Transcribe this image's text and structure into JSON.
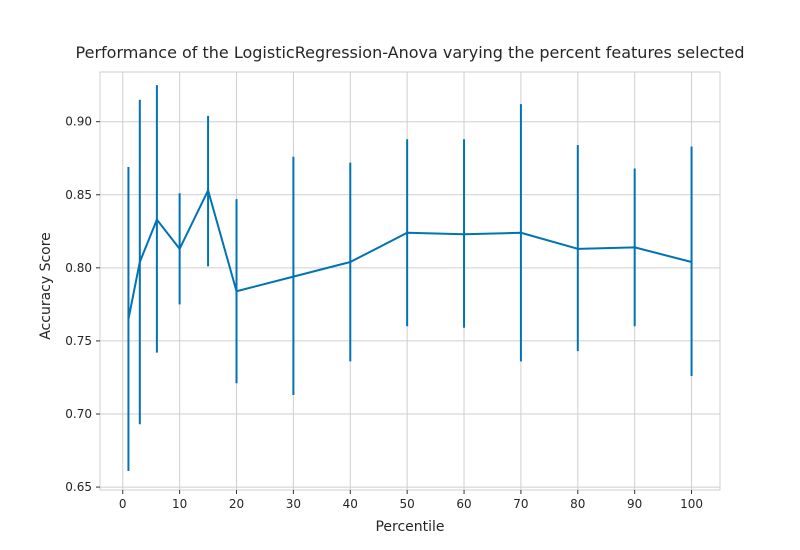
{
  "chart_data": {
    "type": "line",
    "title": "Performance of the LogisticRegression-Anova varying the percent features selected",
    "xlabel": "Percentile",
    "ylabel": "Accuracy Score",
    "xlim": [
      -4,
      105
    ],
    "ylim": [
      0.648,
      0.934
    ],
    "x_ticks": [
      0,
      10,
      20,
      30,
      40,
      50,
      60,
      70,
      80,
      90,
      100
    ],
    "y_ticks": [
      0.65,
      0.7,
      0.75,
      0.8,
      0.85,
      0.9
    ],
    "y_tick_labels": [
      "0.65",
      "0.70",
      "0.75",
      "0.80",
      "0.85",
      "0.90"
    ],
    "grid": true,
    "series": [
      {
        "color": "#0173b2",
        "x": [
          1,
          3,
          6,
          10,
          15,
          20,
          30,
          40,
          50,
          60,
          70,
          80,
          90,
          100
        ],
        "y": [
          0.765,
          0.804,
          0.833,
          0.813,
          0.853,
          0.784,
          0.794,
          0.804,
          0.824,
          0.823,
          0.824,
          0.813,
          0.814,
          0.804
        ],
        "error_low": [
          0.661,
          0.693,
          0.742,
          0.775,
          0.801,
          0.721,
          0.713,
          0.736,
          0.76,
          0.759,
          0.736,
          0.743,
          0.76,
          0.726
        ],
        "error_high": [
          0.869,
          0.915,
          0.925,
          0.851,
          0.904,
          0.847,
          0.876,
          0.872,
          0.888,
          0.888,
          0.912,
          0.884,
          0.868,
          0.883
        ]
      }
    ]
  }
}
